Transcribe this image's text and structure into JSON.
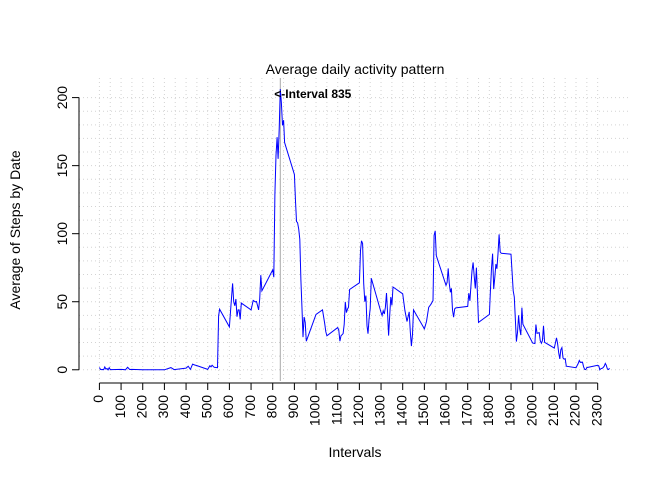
{
  "chart_data": {
    "type": "line",
    "title": "Average daily activity pattern",
    "xlabel": "Intervals",
    "ylabel": "Average of Steps by Date",
    "annotation": {
      "text": "<-Interval 835",
      "x": 835,
      "color": "#9c7d1a"
    },
    "vline": {
      "x": 835,
      "color": "#a8a8a8"
    },
    "color": "#0000ff",
    "grid": true,
    "x": [
      0,
      5,
      10,
      15,
      20,
      25,
      30,
      35,
      40,
      45,
      50,
      55,
      100,
      110,
      120,
      130,
      140,
      150,
      200,
      230,
      245,
      300,
      330,
      345,
      400,
      410,
      420,
      430,
      440,
      450,
      500,
      510,
      515,
      520,
      530,
      545,
      550,
      555,
      600,
      610,
      615,
      620,
      625,
      630,
      635,
      640,
      645,
      650,
      655,
      700,
      710,
      720,
      725,
      735,
      740,
      745,
      750,
      800,
      805,
      810,
      815,
      820,
      825,
      830,
      835,
      840,
      845,
      850,
      855,
      900,
      905,
      910,
      915,
      920,
      925,
      930,
      935,
      940,
      945,
      950,
      955,
      1000,
      1030,
      1040,
      1045,
      1050,
      1100,
      1105,
      1110,
      1115,
      1125,
      1130,
      1135,
      1140,
      1145,
      1150,
      1155,
      1200,
      1205,
      1210,
      1215,
      1220,
      1225,
      1230,
      1235,
      1240,
      1245,
      1250,
      1255,
      1300,
      1305,
      1310,
      1315,
      1320,
      1325,
      1330,
      1335,
      1340,
      1345,
      1350,
      1355,
      1400,
      1410,
      1420,
      1430,
      1435,
      1440,
      1445,
      1450,
      1500,
      1510,
      1520,
      1530,
      1540,
      1545,
      1550,
      1555,
      1600,
      1605,
      1610,
      1615,
      1620,
      1625,
      1630,
      1635,
      1640,
      1645,
      1700,
      1705,
      1710,
      1715,
      1720,
      1725,
      1730,
      1735,
      1740,
      1745,
      1750,
      1800,
      1805,
      1810,
      1815,
      1820,
      1825,
      1830,
      1835,
      1840,
      1845,
      1850,
      1855,
      1900,
      1910,
      1915,
      1920,
      1925,
      1930,
      1935,
      1940,
      1945,
      1950,
      1955,
      2000,
      2010,
      2015,
      2020,
      2030,
      2035,
      2040,
      2045,
      2050,
      2055,
      2100,
      2110,
      2115,
      2120,
      2125,
      2130,
      2135,
      2140,
      2145,
      2150,
      2155,
      2200,
      2210,
      2215,
      2220,
      2230,
      2235,
      2240,
      2245,
      2250,
      2300,
      2305,
      2310,
      2315,
      2320,
      2325,
      2330,
      2335,
      2340,
      2345,
      2350,
      2355
    ],
    "values": [
      1.7,
      0.3,
      0.1,
      0.2,
      0.1,
      2.1,
      0.5,
      0.9,
      0,
      1.5,
      0.3,
      0.1,
      0.3,
      0.2,
      0,
      1.8,
      0.2,
      0.3,
      0,
      0,
      0,
      0,
      1.6,
      0.1,
      1.2,
      2.6,
      0.3,
      4.1,
      3.5,
      3.1,
      0.3,
      3,
      2.2,
      3.3,
      1.8,
      1.5,
      39.5,
      44.5,
      31.5,
      53.8,
      63.5,
      50,
      47,
      52,
      39,
      44,
      44,
      37,
      49,
      44,
      51,
      49.9,
      50.2,
      44,
      52,
      69.5,
      58,
      73.4,
      68,
      129,
      157.5,
      171,
      155,
      177,
      206.2,
      195.9,
      179.6,
      183.4,
      167,
      143.5,
      124,
      109,
      108,
      103.5,
      95.9,
      66,
      45,
      24,
      38.8,
      34.9,
      21,
      40.6,
      44,
      34,
      28,
      25,
      31,
      29,
      21,
      25,
      26.5,
      33.4,
      49.9,
      42,
      44.6,
      46,
      59,
      63.9,
      87.6,
      94.8,
      92.8,
      63.4,
      50,
      54.5,
      32.4,
      26.5,
      37.7,
      45,
      67.3,
      42.3,
      39.9,
      43.3,
      41,
      46,
      56.4,
      42.8,
      25.1,
      39.9,
      53.5,
      47.3,
      60.8,
      55.8,
      43.6,
      35.5,
      42.5,
      28,
      17.4,
      26.1,
      44,
      30,
      35.5,
      45.9,
      48.1,
      50.8,
      98.8,
      102,
      83.9,
      62.1,
      64.1,
      74.5,
      63.2,
      56.9,
      59.8,
      43.9,
      38.6,
      44.7,
      45.5,
      46.6,
      56.3,
      50.7,
      61.2,
      72.7,
      78.9,
      68.9,
      59.7,
      75.1,
      56.5,
      34.8,
      40.7,
      58,
      74.7,
      85.3,
      59.3,
      67.8,
      77.7,
      74.2,
      85.3,
      99.5,
      86.6,
      85.6,
      84.9,
      58,
      53.4,
      36.3,
      20.7,
      27.4,
      40,
      30.2,
      25.5,
      45.7,
      33.5,
      19.6,
      19.3,
      33.3,
      26.8,
      27.3,
      21.3,
      19.5,
      21.3,
      32.3,
      20.2,
      15.9,
      23.5,
      19.2,
      12.5,
      8,
      14.7,
      16.3,
      8.7,
      7.8,
      8.1,
      2.6,
      1.5,
      4.6,
      6.8,
      5.5,
      5.6,
      2.2,
      0.3,
      0.1,
      1.6,
      3.3,
      2.8,
      0,
      0.8,
      1,
      1.6,
      2.6,
      4.7,
      3.3,
      0.6,
      0.2,
      1.1
    ],
    "xlim": [
      -94.2,
      2449.2
    ],
    "ylim": [
      -8.25,
      214.4
    ],
    "xticks": [
      0,
      100,
      200,
      300,
      400,
      500,
      600,
      700,
      800,
      900,
      1000,
      1100,
      1200,
      1300,
      1400,
      1500,
      1600,
      1700,
      1800,
      1900,
      2000,
      2100,
      2200,
      2300
    ],
    "yticks": [
      0,
      50,
      100,
      150,
      200
    ]
  }
}
